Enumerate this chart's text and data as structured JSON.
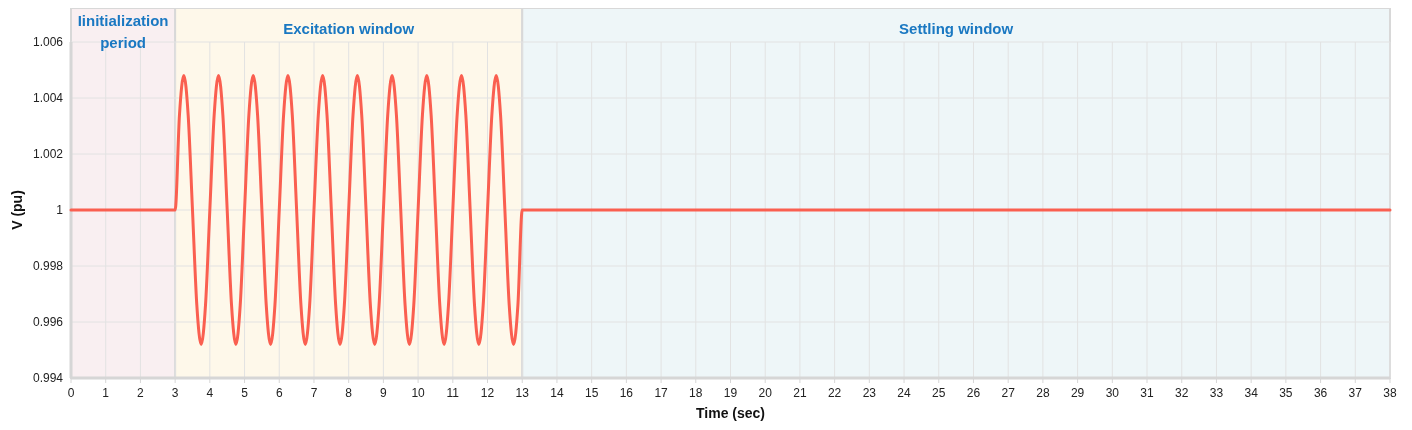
{
  "chart_data": {
    "type": "line",
    "xlabel": "Time (sec)",
    "ylabel": "V (pu)",
    "xlim": [
      0,
      38
    ],
    "ylim": [
      0.994,
      1.006
    ],
    "xticks": [
      0,
      1,
      2,
      3,
      4,
      5,
      6,
      7,
      8,
      9,
      10,
      11,
      12,
      13,
      14,
      15,
      16,
      17,
      18,
      19,
      20,
      21,
      22,
      23,
      24,
      25,
      26,
      27,
      28,
      29,
      30,
      31,
      32,
      33,
      34,
      35,
      36,
      37,
      38
    ],
    "yticks": [
      0.994,
      0.996,
      0.998,
      1,
      1.002,
      1.004,
      1.006
    ],
    "grid": true,
    "marker": "none",
    "line_style": "solid",
    "bands": [
      {
        "axis": "x",
        "from": 0,
        "to": 3,
        "label": "Iinitialization period",
        "color": "#f9eff1"
      },
      {
        "axis": "x",
        "from": 3,
        "to": 13,
        "label": "Excitation window",
        "color": "#fef8ea"
      },
      {
        "axis": "x",
        "from": 13,
        "to": 38,
        "label": "Settling window",
        "color": "#eef6f8"
      }
    ],
    "series": [
      {
        "color": "#fa5f50",
        "x": [
          0,
          3,
          3.125,
          3.25,
          3.375,
          3.5,
          3.625,
          3.75,
          3.875,
          4,
          4.125,
          4.25,
          4.375,
          4.5,
          4.625,
          4.75,
          4.875,
          5,
          5.125,
          5.25,
          5.375,
          5.5,
          5.625,
          5.75,
          5.875,
          6,
          6.125,
          6.25,
          6.375,
          6.5,
          6.625,
          6.75,
          6.875,
          7,
          7.125,
          7.25,
          7.375,
          7.5,
          7.625,
          7.75,
          7.875,
          8,
          8.125,
          8.25,
          8.375,
          8.5,
          8.625,
          8.75,
          8.875,
          9,
          9.125,
          9.25,
          9.375,
          9.5,
          9.625,
          9.75,
          9.875,
          10,
          10.125,
          10.25,
          10.375,
          10.5,
          10.625,
          10.75,
          10.875,
          11,
          11.125,
          11.25,
          11.375,
          11.5,
          11.625,
          11.75,
          11.875,
          12,
          12.125,
          12.25,
          12.375,
          12.5,
          12.625,
          12.75,
          12.875,
          13,
          38
        ],
        "values": [
          1,
          1,
          1.0034,
          1.0048,
          1.0034,
          1,
          0.9966,
          0.9952,
          0.9966,
          1,
          1.0034,
          1.0048,
          1.0034,
          1,
          0.9966,
          0.9952,
          0.9966,
          1,
          1.0034,
          1.0048,
          1.0034,
          1,
          0.9966,
          0.9952,
          0.9966,
          1,
          1.0034,
          1.0048,
          1.0034,
          1,
          0.9966,
          0.9952,
          0.9966,
          1,
          1.0034,
          1.0048,
          1.0034,
          1,
          0.9966,
          0.9952,
          0.9966,
          1,
          1.0034,
          1.0048,
          1.0034,
          1,
          0.9966,
          0.9952,
          0.9966,
          1,
          1.0034,
          1.0048,
          1.0034,
          1,
          0.9966,
          0.9952,
          0.9966,
          1,
          1.0034,
          1.0048,
          1.0034,
          1,
          0.9966,
          0.9952,
          0.9966,
          1,
          1.0034,
          1.0048,
          1.0034,
          1,
          0.9966,
          0.9952,
          0.9966,
          1,
          1.0034,
          1.0048,
          1.0034,
          1,
          0.9966,
          0.9952,
          0.9966,
          1,
          1
        ]
      }
    ]
  }
}
